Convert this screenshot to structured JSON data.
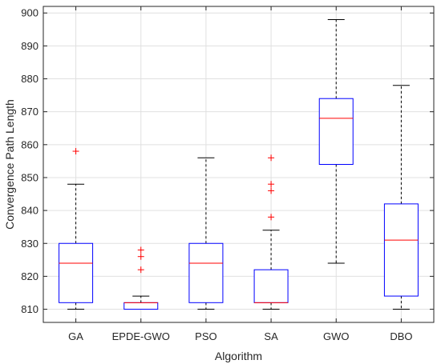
{
  "chart_data": {
    "type": "box",
    "xlabel": "Algorithm",
    "ylabel": "Convergence Path Length",
    "ylim": [
      806,
      902
    ],
    "yticks": [
      810,
      820,
      830,
      840,
      850,
      860,
      870,
      880,
      890,
      900
    ],
    "grid": true,
    "categories": [
      "GA",
      "EPDE-GWO",
      "PSO",
      "SA",
      "GWO",
      "DBO"
    ],
    "boxes": [
      {
        "category": "GA",
        "whisker_low": 810,
        "q1": 812,
        "median": 824,
        "q3": 830,
        "whisker_high": 848,
        "outliers": [
          858
        ]
      },
      {
        "category": "EPDE-GWO",
        "whisker_low": 810,
        "q1": 810,
        "median": 812,
        "q3": 812,
        "whisker_high": 814,
        "outliers": [
          822,
          826,
          828
        ]
      },
      {
        "category": "PSO",
        "whisker_low": 810,
        "q1": 812,
        "median": 824,
        "q3": 830,
        "whisker_high": 856,
        "outliers": []
      },
      {
        "category": "SA",
        "whisker_low": 810,
        "q1": 812,
        "median": 812,
        "q3": 822,
        "whisker_high": 834,
        "outliers": [
          838,
          846,
          848,
          856
        ]
      },
      {
        "category": "GWO",
        "whisker_low": 824,
        "q1": 854,
        "median": 868,
        "q3": 874,
        "whisker_high": 898,
        "outliers": []
      },
      {
        "category": "DBO",
        "whisker_low": 810,
        "q1": 814,
        "median": 831,
        "q3": 842,
        "whisker_high": 878,
        "outliers": []
      }
    ],
    "colors": {
      "box": "#0000ff",
      "median": "#ff0000",
      "outlier": "#ff0000",
      "whisker": "#000000",
      "grid": "#e0e0e0",
      "axes": "#262626"
    }
  }
}
